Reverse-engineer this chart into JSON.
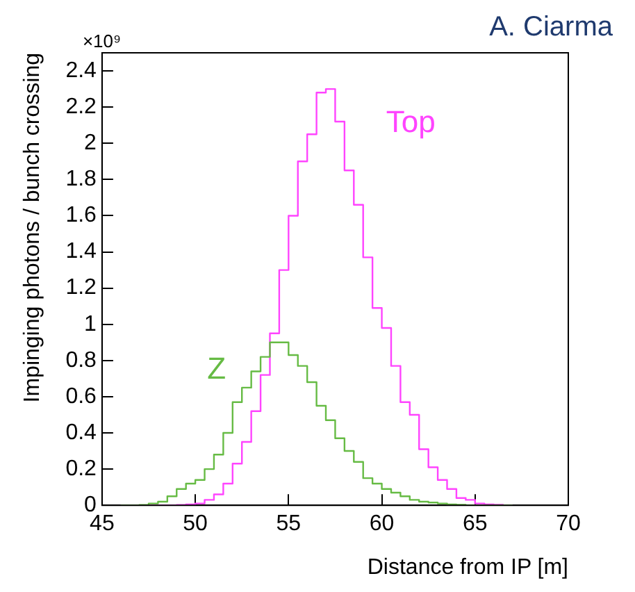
{
  "chart_data": {
    "type": "histogram",
    "xlabel": "Distance from IP [m]",
    "ylabel": "Impinging photons / bunch crossing",
    "annotations": [
      "A. Ciarma",
      "×10⁹"
    ],
    "bins": [
      46,
      46.5,
      47,
      47.5,
      48,
      48.5,
      49,
      49.5,
      50,
      50.5,
      51,
      51.5,
      52,
      52.5,
      53,
      53.5,
      54,
      54.5,
      55,
      55.5,
      56,
      56.5,
      57,
      57.5,
      58,
      58.5,
      59,
      59.5,
      60,
      60.5,
      61,
      61.5,
      62,
      62.5,
      63,
      63.5,
      64,
      64.5,
      65,
      65.5,
      66,
      66.5,
      67
    ],
    "series": [
      {
        "name": "Z",
        "color": "#66bb44",
        "values": [
          0,
          0,
          0.002,
          0.01,
          0.02,
          0.05,
          0.09,
          0.12,
          0.14,
          0.2,
          0.28,
          0.4,
          0.57,
          0.65,
          0.74,
          0.82,
          0.9,
          0.9,
          0.83,
          0.77,
          0.68,
          0.55,
          0.47,
          0.37,
          0.3,
          0.24,
          0.15,
          0.12,
          0.09,
          0.07,
          0.05,
          0.03,
          0.02,
          0.015,
          0.01,
          0.005,
          0.003,
          0,
          0,
          0,
          0,
          0
        ]
      },
      {
        "name": "Top",
        "color": "#ff44ff",
        "values": [
          0,
          0,
          0,
          0,
          0,
          0,
          0.002,
          0.005,
          0.01,
          0.03,
          0.06,
          0.12,
          0.23,
          0.35,
          0.52,
          0.72,
          0.95,
          1.3,
          1.6,
          1.9,
          2.05,
          2.28,
          2.3,
          2.12,
          1.85,
          1.66,
          1.37,
          1.09,
          0.98,
          0.77,
          0.57,
          0.5,
          0.31,
          0.21,
          0.14,
          0.09,
          0.04,
          0.03,
          0.01,
          0.005,
          0.003,
          0
        ]
      }
    ],
    "xlim": [
      45,
      70
    ],
    "xticks": [
      45,
      50,
      55,
      60,
      65,
      70
    ],
    "ylim": [
      0,
      2.5
    ],
    "yticks": [
      0,
      0.2,
      0.4,
      0.6,
      0.8,
      1,
      1.2,
      1.4,
      1.6,
      1.8,
      2,
      2.2,
      2.4
    ],
    "grid": false,
    "legend": false
  }
}
